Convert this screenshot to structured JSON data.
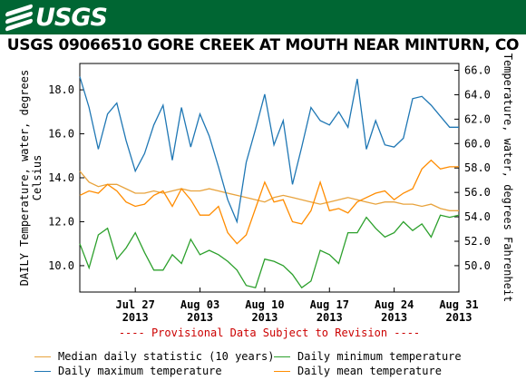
{
  "header": {
    "logo_text": "USGS"
  },
  "chart_data": {
    "type": "line",
    "title": "USGS 09066510 GORE CREEK AT MOUTH NEAR MINTURN, CO",
    "ylabel_left": "DAILY Temperature, water, degrees Celsius",
    "ylabel_right": "Temperature, water, degrees Fahrenheit",
    "ylim_left": [
      8.8,
      19.2
    ],
    "ylim_right": [
      47.84,
      66.56
    ],
    "yticks_left": [
      "10.0",
      "12.0",
      "14.0",
      "16.0",
      "18.0"
    ],
    "yticks_right": [
      "50.0",
      "52.0",
      "54.0",
      "56.0",
      "58.0",
      "60.0",
      "62.0",
      "64.0",
      "66.0"
    ],
    "x_start": "2013-07-21",
    "x_end": "2013-08-31",
    "xticks": [
      {
        "date": "2013-07-27",
        "line1": "Jul 27",
        "line2": "2013"
      },
      {
        "date": "2013-08-03",
        "line1": "Aug 03",
        "line2": "2013"
      },
      {
        "date": "2013-08-10",
        "line1": "Aug 10",
        "line2": "2013"
      },
      {
        "date": "2013-08-17",
        "line1": "Aug 17",
        "line2": "2013"
      },
      {
        "date": "2013-08-24",
        "line1": "Aug 24",
        "line2": "2013"
      },
      {
        "date": "2013-08-31",
        "line1": "Aug 31",
        "line2": "2013"
      }
    ],
    "provisional_note": "---- Provisional Data Subject to Revision ----",
    "grid": false,
    "series": [
      {
        "name": "Median daily statistic (10 years)",
        "color": "#e8a33d",
        "dates": [
          "2013-07-21",
          "2013-07-22",
          "2013-07-23",
          "2013-07-24",
          "2013-07-25",
          "2013-07-26",
          "2013-07-27",
          "2013-07-28",
          "2013-07-29",
          "2013-07-30",
          "2013-07-31",
          "2013-08-01",
          "2013-08-02",
          "2013-08-03",
          "2013-08-04",
          "2013-08-05",
          "2013-08-06",
          "2013-08-07",
          "2013-08-08",
          "2013-08-09",
          "2013-08-10",
          "2013-08-11",
          "2013-08-12",
          "2013-08-13",
          "2013-08-14",
          "2013-08-15",
          "2013-08-16",
          "2013-08-17",
          "2013-08-18",
          "2013-08-19",
          "2013-08-20",
          "2013-08-21",
          "2013-08-22",
          "2013-08-23",
          "2013-08-24",
          "2013-08-25",
          "2013-08-26",
          "2013-08-27",
          "2013-08-28",
          "2013-08-29",
          "2013-08-30",
          "2013-08-31"
        ],
        "values": [
          14.3,
          13.8,
          13.6,
          13.7,
          13.7,
          13.5,
          13.3,
          13.3,
          13.4,
          13.3,
          13.4,
          13.5,
          13.4,
          13.4,
          13.5,
          13.4,
          13.3,
          13.2,
          13.1,
          13.0,
          12.9,
          13.1,
          13.2,
          13.1,
          13.0,
          12.9,
          12.8,
          12.9,
          13.0,
          13.1,
          13.0,
          12.9,
          12.8,
          12.9,
          12.9,
          12.8,
          12.8,
          12.7,
          12.8,
          12.6,
          12.5,
          12.5
        ]
      },
      {
        "name": "Daily maximum temperature",
        "color": "#1f77b4",
        "dates": [
          "2013-07-21",
          "2013-07-22",
          "2013-07-23",
          "2013-07-24",
          "2013-07-25",
          "2013-07-26",
          "2013-07-27",
          "2013-07-28",
          "2013-07-29",
          "2013-07-30",
          "2013-07-31",
          "2013-08-01",
          "2013-08-02",
          "2013-08-03",
          "2013-08-04",
          "2013-08-05",
          "2013-08-06",
          "2013-08-07",
          "2013-08-08",
          "2013-08-09",
          "2013-08-10",
          "2013-08-11",
          "2013-08-12",
          "2013-08-13",
          "2013-08-14",
          "2013-08-15",
          "2013-08-16",
          "2013-08-17",
          "2013-08-18",
          "2013-08-19",
          "2013-08-20",
          "2013-08-21",
          "2013-08-22",
          "2013-08-23",
          "2013-08-24",
          "2013-08-25",
          "2013-08-26",
          "2013-08-27",
          "2013-08-28",
          "2013-08-29",
          "2013-08-30",
          "2013-08-31"
        ],
        "values": [
          18.6,
          17.2,
          15.3,
          16.9,
          17.4,
          15.7,
          14.3,
          15.1,
          16.4,
          17.3,
          14.8,
          17.2,
          15.4,
          16.9,
          15.9,
          14.5,
          13.0,
          12.0,
          14.7,
          16.2,
          17.8,
          15.5,
          16.6,
          13.7,
          15.4,
          17.2,
          16.6,
          16.4,
          17.0,
          16.3,
          18.5,
          15.3,
          16.6,
          15.5,
          15.4,
          15.8,
          17.6,
          17.7,
          17.3,
          16.8,
          16.3,
          16.3
        ]
      },
      {
        "name": "Daily minimum temperature",
        "color": "#2ca02c",
        "dates": [
          "2013-07-21",
          "2013-07-22",
          "2013-07-23",
          "2013-07-24",
          "2013-07-25",
          "2013-07-26",
          "2013-07-27",
          "2013-07-28",
          "2013-07-29",
          "2013-07-30",
          "2013-07-31",
          "2013-08-01",
          "2013-08-02",
          "2013-08-03",
          "2013-08-04",
          "2013-08-05",
          "2013-08-06",
          "2013-08-07",
          "2013-08-08",
          "2013-08-09",
          "2013-08-10",
          "2013-08-11",
          "2013-08-12",
          "2013-08-13",
          "2013-08-14",
          "2013-08-15",
          "2013-08-16",
          "2013-08-17",
          "2013-08-18",
          "2013-08-19",
          "2013-08-20",
          "2013-08-21",
          "2013-08-22",
          "2013-08-23",
          "2013-08-24",
          "2013-08-25",
          "2013-08-26",
          "2013-08-27",
          "2013-08-28",
          "2013-08-29",
          "2013-08-30",
          "2013-08-31"
        ],
        "values": [
          11.0,
          9.9,
          11.4,
          11.7,
          10.3,
          10.8,
          11.5,
          10.6,
          9.8,
          9.8,
          10.5,
          10.1,
          11.2,
          10.5,
          10.7,
          10.5,
          10.2,
          9.8,
          9.1,
          9.0,
          10.3,
          10.2,
          10.0,
          9.6,
          9.0,
          9.3,
          10.7,
          10.5,
          10.1,
          11.5,
          11.5,
          12.2,
          11.7,
          11.3,
          11.5,
          12.0,
          11.6,
          11.9,
          11.3,
          12.3,
          12.2,
          12.3
        ]
      },
      {
        "name": "Daily mean temperature",
        "color": "#ff8c00",
        "dates": [
          "2013-07-21",
          "2013-07-22",
          "2013-07-23",
          "2013-07-24",
          "2013-07-25",
          "2013-07-26",
          "2013-07-27",
          "2013-07-28",
          "2013-07-29",
          "2013-07-30",
          "2013-07-31",
          "2013-08-01",
          "2013-08-02",
          "2013-08-03",
          "2013-08-04",
          "2013-08-05",
          "2013-08-06",
          "2013-08-07",
          "2013-08-08",
          "2013-08-09",
          "2013-08-10",
          "2013-08-11",
          "2013-08-12",
          "2013-08-13",
          "2013-08-14",
          "2013-08-15",
          "2013-08-16",
          "2013-08-17",
          "2013-08-18",
          "2013-08-19",
          "2013-08-20",
          "2013-08-21",
          "2013-08-22",
          "2013-08-23",
          "2013-08-24",
          "2013-08-25",
          "2013-08-26",
          "2013-08-27",
          "2013-08-28",
          "2013-08-29",
          "2013-08-30",
          "2013-08-31"
        ],
        "values": [
          13.2,
          13.4,
          13.3,
          13.7,
          13.4,
          12.9,
          12.7,
          12.8,
          13.2,
          13.4,
          12.7,
          13.5,
          13.0,
          12.3,
          12.3,
          12.7,
          11.5,
          11.0,
          11.4,
          12.6,
          13.8,
          12.9,
          13.0,
          12.0,
          11.9,
          12.5,
          13.8,
          12.5,
          12.6,
          12.4,
          12.9,
          13.1,
          13.3,
          13.4,
          13.0,
          13.3,
          13.5,
          14.4,
          14.8,
          14.4,
          14.5,
          14.5
        ]
      }
    ]
  }
}
